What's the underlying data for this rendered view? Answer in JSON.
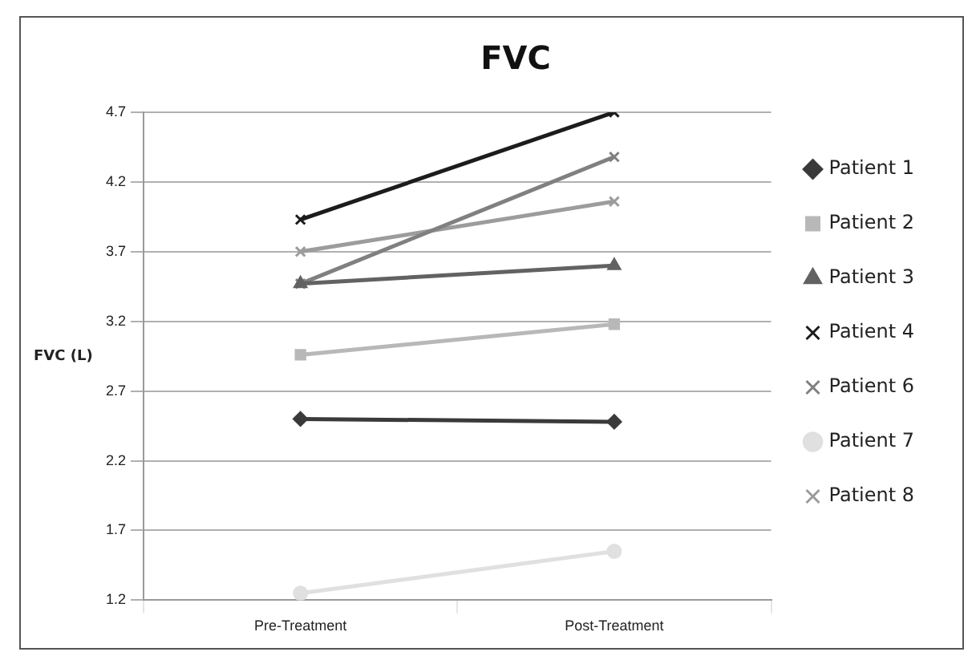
{
  "chart_data": {
    "type": "line",
    "title": "FVC",
    "ylabel": "FVC (L)",
    "categories": [
      "Pre-Treatment",
      "Post-Treatment"
    ],
    "series": [
      {
        "name": "Patient 1",
        "color": "#3a3a3a",
        "marker": "diamond",
        "values": [
          2.5,
          2.48
        ]
      },
      {
        "name": "Patient 2",
        "color": "#b8b8b8",
        "marker": "square",
        "values": [
          2.96,
          3.18
        ]
      },
      {
        "name": "Patient 3",
        "color": "#626262",
        "marker": "triangle",
        "values": [
          3.47,
          3.6
        ]
      },
      {
        "name": "Patient 4",
        "color": "#1c1c1c",
        "marker": "cross",
        "values": [
          3.93,
          4.7
        ]
      },
      {
        "name": "Patient 6",
        "color": "#808080",
        "marker": "cross",
        "values": [
          3.47,
          4.38
        ]
      },
      {
        "name": "Patient 7",
        "color": "#e0e0e0",
        "marker": "circle",
        "values": [
          1.25,
          1.55
        ]
      },
      {
        "name": "Patient 8",
        "color": "#9c9c9c",
        "marker": "cross",
        "values": [
          3.7,
          4.06
        ]
      }
    ],
    "ylim": [
      1.2,
      4.7
    ],
    "yticks": [
      1.2,
      1.7,
      2.2,
      2.7,
      3.2,
      3.7,
      4.2,
      4.7
    ],
    "grid": "y",
    "legend": "right"
  }
}
